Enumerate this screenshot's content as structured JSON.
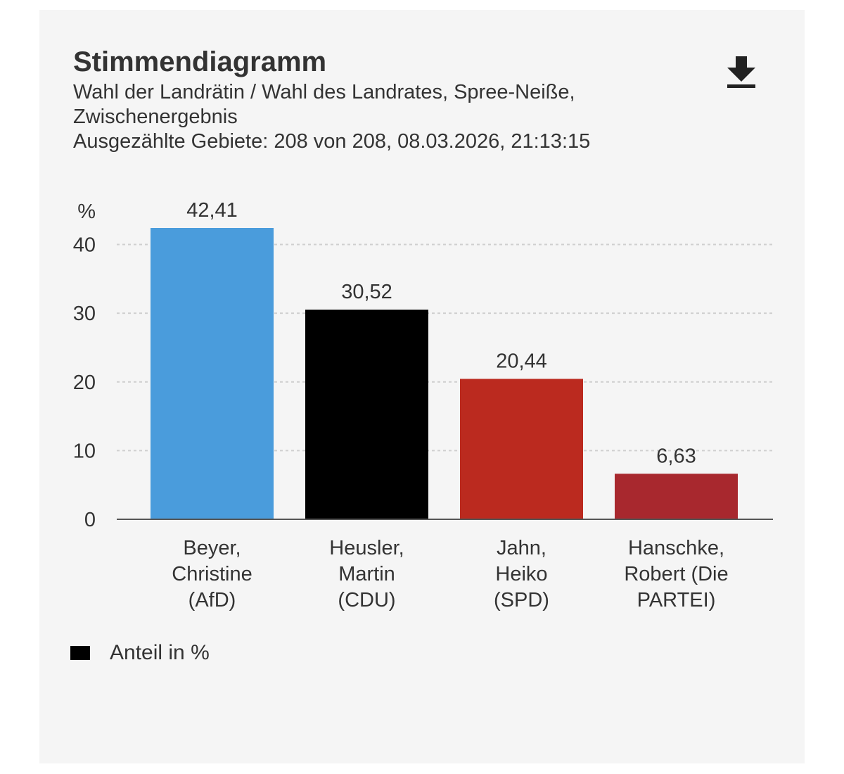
{
  "header": {
    "title": "Stimmendiagramm",
    "subtitle_line1": "Wahl der Landrätin / Wahl des Landrates, Spree-Neiße,",
    "subtitle_line2": "Zwischenergebnis",
    "subtitle_line3": "Ausgezählte Gebiete: 208 von 208, 08.03.2026, 21:13:15",
    "download_icon": "download-icon"
  },
  "legend": {
    "label": "Anteil in %",
    "swatch_color": "#000000"
  },
  "chart_data": {
    "type": "bar",
    "title": "Stimmendiagramm",
    "ylabel": "%",
    "xlabel": "",
    "ylim": [
      0,
      42.41
    ],
    "yticks": [
      "0",
      "10",
      "20",
      "30",
      "40"
    ],
    "ytick_values": [
      0,
      10,
      20,
      30,
      40
    ],
    "grid": true,
    "legend": "bottom-left",
    "categories": [
      [
        "Beyer,",
        "Christine",
        "(AfD)"
      ],
      [
        "Heusler,",
        "Martin",
        "(CDU)"
      ],
      [
        "Jahn,",
        "Heiko",
        "(SPD)"
      ],
      [
        "Hanschke,",
        "Robert (Die",
        "PARTEI)"
      ]
    ],
    "values": [
      42.41,
      30.52,
      20.44,
      6.63
    ],
    "value_labels": [
      "42,41",
      "30,52",
      "20,44",
      "6,63"
    ],
    "colors": [
      "#4a9cdc",
      "#000000",
      "#bb2a1f",
      "#a8282e"
    ],
    "series": [
      {
        "name": "Anteil in %",
        "values": [
          42.41,
          30.52,
          20.44,
          6.63
        ]
      }
    ]
  }
}
